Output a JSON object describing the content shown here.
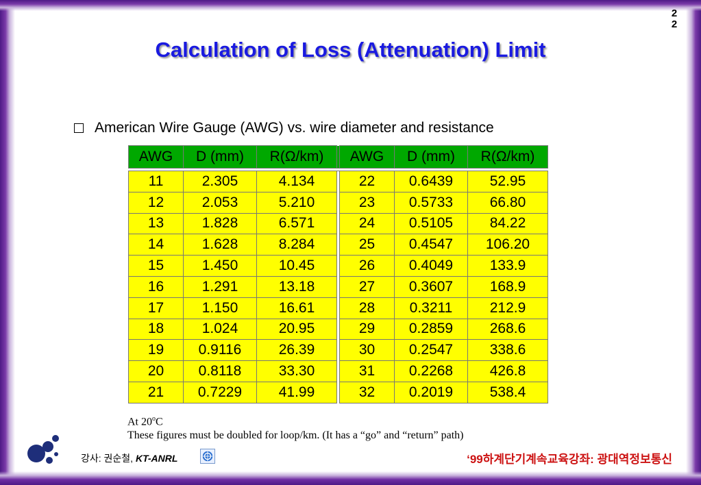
{
  "page": {
    "number_line1": "2",
    "number_line2": "2",
    "title": "Calculation of Loss (Attenuation) Limit"
  },
  "bullet": {
    "text": "American Wire Gauge (AWG) vs. wire diameter and resistance"
  },
  "table": {
    "headers": [
      "AWG",
      "D (mm)",
      "R(Ω/km)",
      "AWG",
      "D (mm)",
      "R(Ω/km)"
    ],
    "rows": [
      [
        "11",
        "2.305",
        "4.134",
        "22",
        "0.6439",
        "52.95"
      ],
      [
        "12",
        "2.053",
        "5.210",
        "23",
        "0.5733",
        "66.80"
      ],
      [
        "13",
        "1.828",
        "6.571",
        "24",
        "0.5105",
        "84.22"
      ],
      [
        "14",
        "1.628",
        "8.284",
        "25",
        "0.4547",
        "106.20"
      ],
      [
        "15",
        "1.450",
        "10.45",
        "26",
        "0.4049",
        "133.9"
      ],
      [
        "16",
        "1.291",
        "13.18",
        "27",
        "0.3607",
        "168.9"
      ],
      [
        "17",
        "1.150",
        "16.61",
        "28",
        "0.3211",
        "212.9"
      ],
      [
        "18",
        "1.024",
        "20.95",
        "29",
        "0.2859",
        "268.6"
      ],
      [
        "19",
        "0.9116",
        "26.39",
        "30",
        "0.2547",
        "338.6"
      ],
      [
        "20",
        "0.8118",
        "33.30",
        "31",
        "0.2268",
        "426.8"
      ],
      [
        "21",
        "0.7229",
        "41.99",
        "32",
        "0.2019",
        "538.4"
      ]
    ],
    "colors": {
      "header_bg": "#00a800",
      "cell_bg": "#ffff00"
    }
  },
  "notes": {
    "temp_prefix": "At 20",
    "temp_sup": "o",
    "temp_suffix": "C",
    "line2": "These figures must be doubled for loop/km. (It has a “go” and “return” path)"
  },
  "footer": {
    "lecturer_prefix": "강사: 권순철, ",
    "lecturer_org": "KT-ANRL",
    "course": "‘99하계단기계속교육강좌: 광대역정보통신",
    "logo_icon": "dots-logo-icon",
    "org_icon": "kt-emblem-icon"
  },
  "colors": {
    "title": "#1a1ae0",
    "frame": "#4e1a86",
    "course_text": "#cc1111"
  }
}
